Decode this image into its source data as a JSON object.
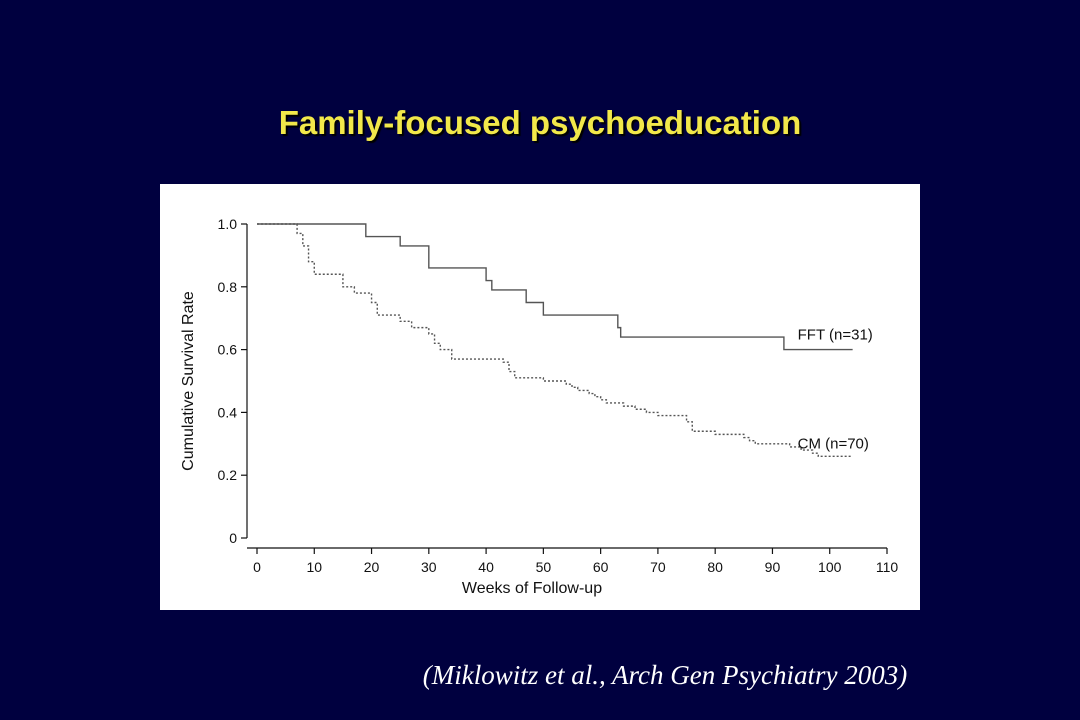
{
  "slide": {
    "title": "Family-focused psychoeducation",
    "citation": "(Miklowitz et al., Arch Gen Psychiatry 2003)"
  },
  "colors": {
    "background": "#00003f",
    "title": "#f2e84a",
    "citation": "#ffffff",
    "fft_line": "#555555",
    "cm_line": "#555555"
  },
  "chart_data": {
    "type": "line",
    "step": true,
    "title": "",
    "xlabel": "Weeks of Follow-up",
    "ylabel": "Cumulative Survival Rate",
    "xlim": [
      0,
      110
    ],
    "ylim": [
      0,
      1.0
    ],
    "xticks": [
      0,
      10,
      20,
      30,
      40,
      50,
      60,
      70,
      80,
      90,
      100,
      110
    ],
    "yticks": [
      0,
      0.2,
      0.4,
      0.6,
      0.8,
      1.0
    ],
    "ytick_labels": [
      "0",
      "0.2",
      "0.4",
      "0.6",
      "0.8",
      "1.0"
    ],
    "grid": false,
    "series": [
      {
        "name": "FFT (n=31)",
        "style": "solid",
        "x": [
          0,
          19,
          25,
          30,
          40,
          41,
          43,
          47,
          50,
          63,
          63.5,
          92,
          104
        ],
        "y": [
          1.0,
          0.96,
          0.93,
          0.86,
          0.82,
          0.79,
          0.79,
          0.75,
          0.71,
          0.67,
          0.64,
          0.6,
          0.6
        ]
      },
      {
        "name": "CM (n=70)",
        "style": "dashed",
        "x": [
          0,
          7,
          8,
          9,
          10,
          15,
          17,
          20,
          21,
          25,
          27,
          30,
          31,
          32,
          34,
          43,
          44,
          45,
          50,
          54,
          55,
          56,
          58,
          59,
          60,
          61,
          64,
          66,
          68,
          70,
          75,
          76,
          80,
          85,
          86,
          87,
          90,
          93,
          95,
          97,
          98,
          101,
          104
        ],
        "y": [
          1.0,
          0.97,
          0.93,
          0.88,
          0.84,
          0.8,
          0.78,
          0.75,
          0.71,
          0.69,
          0.67,
          0.65,
          0.62,
          0.6,
          0.57,
          0.56,
          0.53,
          0.51,
          0.5,
          0.49,
          0.48,
          0.47,
          0.46,
          0.45,
          0.44,
          0.43,
          0.42,
          0.41,
          0.4,
          0.39,
          0.37,
          0.34,
          0.33,
          0.32,
          0.31,
          0.3,
          0.3,
          0.29,
          0.28,
          0.27,
          0.26,
          0.26,
          0.26
        ]
      }
    ]
  }
}
